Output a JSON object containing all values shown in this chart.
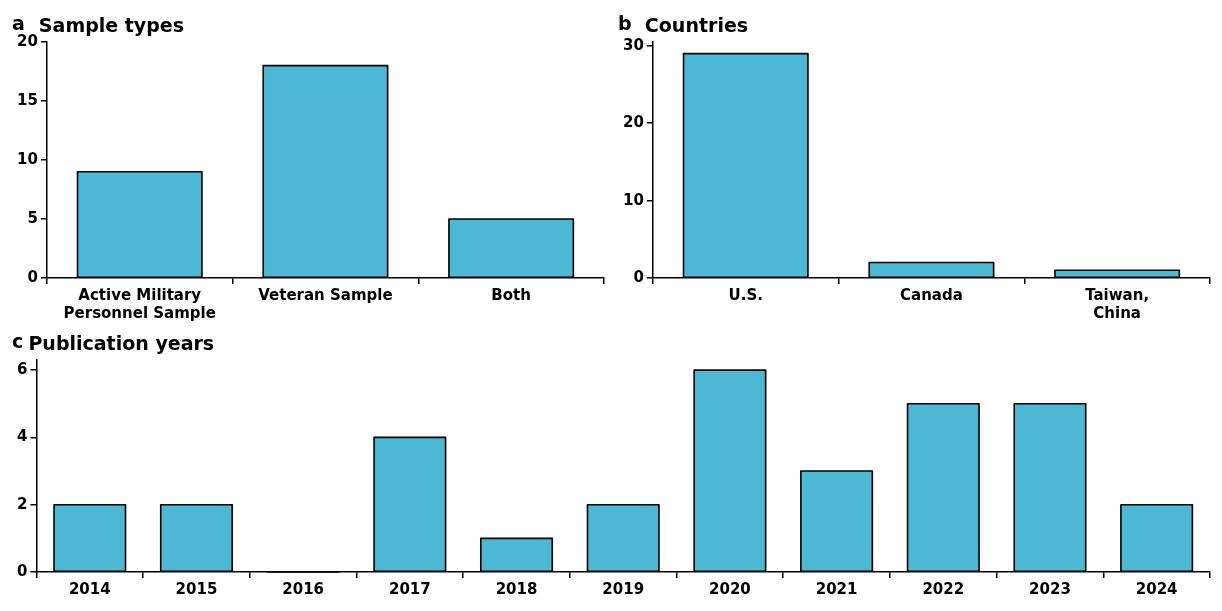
{
  "chart_data": [
    {
      "type": "bar",
      "title": "Sample types",
      "annotations": [
        "a"
      ],
      "categories": [
        "Active Military Personnel Sample",
        "Veteran Sample",
        "Both"
      ],
      "values": [
        9,
        18,
        5
      ],
      "color": "#4cb8d4",
      "ylim": [
        0,
        20
      ],
      "yticks": [
        0,
        5,
        10,
        15,
        20
      ]
    },
    {
      "type": "bar",
      "title": "Countries",
      "annotations": [
        "b"
      ],
      "categories": [
        "U.S.",
        "Canada",
        "Taiwan, China"
      ],
      "values": [
        29,
        2,
        1
      ],
      "color": "#4cb8d4",
      "ylim": [
        0,
        30.5
      ],
      "yticks": [
        0,
        10,
        20,
        30
      ]
    },
    {
      "type": "bar",
      "title": "Publication years",
      "annotations": [
        "c"
      ],
      "categories": [
        "2014",
        "2015",
        "2016",
        "2017",
        "2018",
        "2019",
        "2020",
        "2021",
        "2022",
        "2023",
        "2024"
      ],
      "values": [
        2,
        2,
        0,
        4,
        1,
        2,
        6,
        3,
        5,
        5,
        2
      ],
      "color": "#4cb8d4",
      "ylim": [
        0,
        6.3
      ],
      "yticks": [
        0,
        2,
        4,
        6
      ]
    }
  ]
}
